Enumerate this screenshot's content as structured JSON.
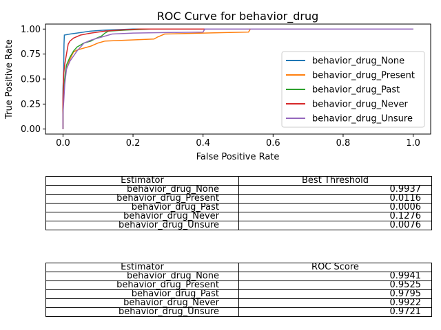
{
  "chart_data": {
    "type": "line",
    "title": "ROC Curve for behavior_drug",
    "xlabel": "False Positive Rate",
    "ylabel": "True Positive Rate",
    "xlim": [
      -0.05,
      1.05
    ],
    "ylim": [
      -0.05,
      1.05
    ],
    "xticks": [
      "0.0",
      "0.2",
      "0.4",
      "0.6",
      "0.8",
      "1.0"
    ],
    "yticks": [
      "0.00",
      "0.25",
      "0.50",
      "0.75",
      "1.00"
    ],
    "xtick_values": [
      0,
      0.2,
      0.4,
      0.6,
      0.8,
      1.0
    ],
    "ytick_values": [
      0,
      0.25,
      0.5,
      0.75,
      1.0
    ],
    "grid": false,
    "legend_position": "center-right",
    "series": [
      {
        "name": "behavior_drug_None",
        "color": "#1f77b4",
        "points": [
          [
            0,
            0
          ],
          [
            0,
            0.4
          ],
          [
            0.002,
            0.6
          ],
          [
            0.003,
            0.85
          ],
          [
            0.004,
            0.94
          ],
          [
            0.02,
            0.95
          ],
          [
            0.04,
            0.96
          ],
          [
            0.06,
            0.97
          ],
          [
            0.08,
            0.98
          ],
          [
            0.12,
            0.99
          ],
          [
            0.2,
            1.0
          ],
          [
            1.0,
            1.0
          ]
        ]
      },
      {
        "name": "behavior_drug_Present",
        "color": "#ff7f0e",
        "points": [
          [
            0,
            0
          ],
          [
            0,
            0.25
          ],
          [
            0.005,
            0.5
          ],
          [
            0.01,
            0.6
          ],
          [
            0.02,
            0.7
          ],
          [
            0.03,
            0.77
          ],
          [
            0.04,
            0.79
          ],
          [
            0.06,
            0.81
          ],
          [
            0.08,
            0.83
          ],
          [
            0.1,
            0.86
          ],
          [
            0.12,
            0.88
          ],
          [
            0.26,
            0.9
          ],
          [
            0.27,
            0.92
          ],
          [
            0.29,
            0.95
          ],
          [
            0.4,
            0.96
          ],
          [
            0.53,
            0.97
          ],
          [
            0.535,
            1.0
          ],
          [
            1.0,
            1.0
          ]
        ]
      },
      {
        "name": "behavior_drug_Past",
        "color": "#2ca02c",
        "points": [
          [
            0,
            0
          ],
          [
            0,
            0.2
          ],
          [
            0.003,
            0.4
          ],
          [
            0.006,
            0.55
          ],
          [
            0.01,
            0.64
          ],
          [
            0.02,
            0.72
          ],
          [
            0.03,
            0.78
          ],
          [
            0.04,
            0.82
          ],
          [
            0.05,
            0.84
          ],
          [
            0.06,
            0.86
          ],
          [
            0.08,
            0.88
          ],
          [
            0.09,
            0.9
          ],
          [
            0.11,
            0.93
          ],
          [
            0.12,
            0.96
          ],
          [
            0.13,
            0.98
          ],
          [
            0.18,
            0.99
          ],
          [
            0.25,
            1.0
          ],
          [
            1.0,
            1.0
          ]
        ]
      },
      {
        "name": "behavior_drug_Never",
        "color": "#d62728",
        "points": [
          [
            0,
            0
          ],
          [
            0,
            0.3
          ],
          [
            0.002,
            0.55
          ],
          [
            0.005,
            0.65
          ],
          [
            0.01,
            0.75
          ],
          [
            0.015,
            0.85
          ],
          [
            0.02,
            0.88
          ],
          [
            0.03,
            0.91
          ],
          [
            0.05,
            0.94
          ],
          [
            0.08,
            0.96
          ],
          [
            0.12,
            0.98
          ],
          [
            0.16,
            0.99
          ],
          [
            0.22,
            1.0
          ],
          [
            1.0,
            1.0
          ]
        ]
      },
      {
        "name": "behavior_drug_Unsure",
        "color": "#9467bd",
        "points": [
          [
            0,
            0
          ],
          [
            0,
            0.15
          ],
          [
            0.005,
            0.45
          ],
          [
            0.01,
            0.6
          ],
          [
            0.02,
            0.68
          ],
          [
            0.03,
            0.73
          ],
          [
            0.04,
            0.78
          ],
          [
            0.05,
            0.82
          ],
          [
            0.06,
            0.86
          ],
          [
            0.08,
            0.89
          ],
          [
            0.1,
            0.91
          ],
          [
            0.12,
            0.93
          ],
          [
            0.14,
            0.95
          ],
          [
            0.2,
            0.96
          ],
          [
            0.4,
            0.97
          ],
          [
            0.405,
            1.0
          ],
          [
            1.0,
            1.0
          ]
        ]
      }
    ]
  },
  "threshold_table": {
    "headers": [
      "Estimator",
      "Best Threshold"
    ],
    "rows": [
      [
        "behavior_drug_None",
        "0.9937"
      ],
      [
        "behavior_drug_Present",
        "0.0116"
      ],
      [
        "behavior_drug_Past",
        "0.0006"
      ],
      [
        "behavior_drug_Never",
        "0.1276"
      ],
      [
        "behavior_drug_Unsure",
        "0.0076"
      ]
    ]
  },
  "roc_table": {
    "headers": [
      "Estimator",
      "ROC Score"
    ],
    "rows": [
      [
        "behavior_drug_None",
        "0.9941"
      ],
      [
        "behavior_drug_Present",
        "0.9525"
      ],
      [
        "behavior_drug_Past",
        "0.9795"
      ],
      [
        "behavior_drug_Never",
        "0.9922"
      ],
      [
        "behavior_drug_Unsure",
        "0.9721"
      ]
    ]
  }
}
